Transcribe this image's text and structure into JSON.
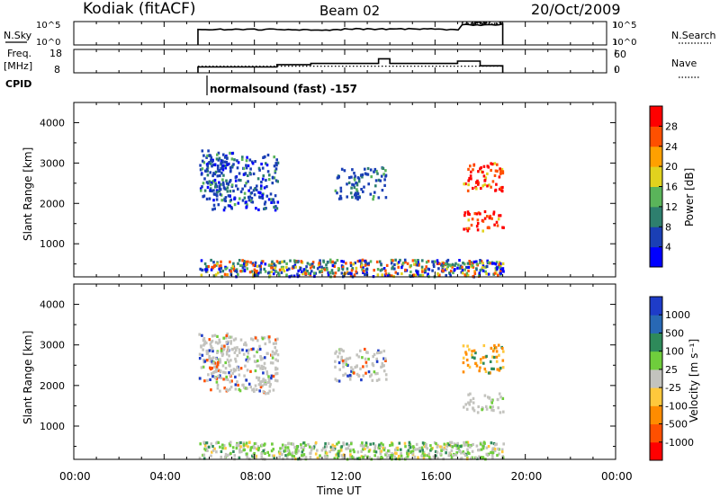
{
  "header": {
    "station": "Kodiak (fitACF)",
    "beam": "Beam 02",
    "date": "20/Oct/2009"
  },
  "noise_panel": {
    "left_label": "N.Sky",
    "right_label": "N.Search",
    "tick_top": "10^5",
    "tick_bottom": "10^0"
  },
  "freq_panel": {
    "left_label_1": "Freq.",
    "left_label_2": "[MHz]",
    "left_tick_top": "18",
    "left_tick_bottom": "8",
    "right_label": "Nave",
    "right_tick_top": "60",
    "right_tick_bottom": "0"
  },
  "cpid": {
    "label": "CPID",
    "text": "normalsound (fast) -157"
  },
  "x_axis": {
    "title": "Time UT",
    "ticks": [
      "00:00",
      "04:00",
      "08:00",
      "12:00",
      "16:00",
      "20:00",
      "00:00"
    ]
  },
  "power_panel": {
    "ylabel": "Slant Range [km]",
    "yticks": [
      "1000",
      "2000",
      "3000",
      "4000"
    ],
    "colorbar_label": "Power [dB]",
    "colorbar_ticks": [
      "4",
      "8",
      "12",
      "16",
      "20",
      "24",
      "28"
    ],
    "colors": [
      "#0000ff",
      "#1a3fb5",
      "#2e7f6e",
      "#5ab45a",
      "#e1d21e",
      "#ffa000",
      "#ff5000",
      "#ff0000"
    ]
  },
  "velocity_panel": {
    "ylabel": "Slant Range [km]",
    "yticks": [
      "1000",
      "2000",
      "3000",
      "4000"
    ],
    "colorbar_label": "Velocity [m s⁻¹]",
    "colorbar_ticks": [
      "1000",
      "500",
      "100",
      "25",
      "-25",
      "-100",
      "-500",
      "-1000"
    ],
    "colors": [
      "#1e3cc8",
      "#2868b4",
      "#2e8a5a",
      "#6fcd3c",
      "#c3c3be",
      "#ffc83c",
      "#ff8c00",
      "#ff5000",
      "#ff0000"
    ]
  },
  "chart_data": {
    "type": "heatmap",
    "x_unit": "UT hours",
    "xlim": [
      0,
      24
    ],
    "ylim_km": [
      180,
      4500
    ],
    "operating_interval_ut": [
      5.5,
      19.0
    ],
    "echo_regions": [
      {
        "t": [
          5.5,
          19.0
        ],
        "r": [
          180,
          600
        ],
        "power": "mixed 4-20 dB",
        "velocity": "near zero to 100"
      },
      {
        "t": [
          5.5,
          7.0
        ],
        "r": [
          2100,
          3300
        ],
        "power": "4-12 dB",
        "velocity": "-25 to 25"
      },
      {
        "t": [
          6.0,
          9.0
        ],
        "r": [
          1800,
          3200
        ],
        "power": "4-12 dB",
        "velocity": "-25 to 25"
      },
      {
        "t": [
          11.5,
          13.0
        ],
        "r": [
          2100,
          2900
        ],
        "power": "4-12 dB",
        "velocity": "-25 to 25"
      },
      {
        "t": [
          13.0,
          13.8
        ],
        "r": [
          2100,
          2900
        ],
        "power": "4-12 dB",
        "velocity": "-25 to 25"
      },
      {
        "t": [
          17.2,
          19.0
        ],
        "r": [
          2300,
          3000
        ],
        "power": "20-28 dB",
        "velocity": "-100 to -500"
      },
      {
        "t": [
          17.2,
          19.0
        ],
        "r": [
          1300,
          1800
        ],
        "power": "20-28 dB",
        "velocity": "-25 to 25"
      }
    ],
    "noise_sky_log10": [
      [
        5.5,
        3.3
      ],
      [
        9.0,
        3.2
      ],
      [
        12.0,
        3.4
      ],
      [
        16.0,
        3.3
      ],
      [
        17.2,
        4.3
      ],
      [
        19.0,
        4.5
      ]
    ],
    "frequency_mhz": [
      [
        5.5,
        10.5
      ],
      [
        9.0,
        11.5
      ],
      [
        10.5,
        12.0
      ],
      [
        12.0,
        12.0
      ],
      [
        13.5,
        14.0
      ],
      [
        14.0,
        12.0
      ],
      [
        17.0,
        13.0
      ],
      [
        18.0,
        11.0
      ],
      [
        19.0,
        11.0
      ]
    ],
    "nave": [
      [
        5.5,
        17
      ],
      [
        19.0,
        17
      ]
    ],
    "cpid_value": -157
  }
}
